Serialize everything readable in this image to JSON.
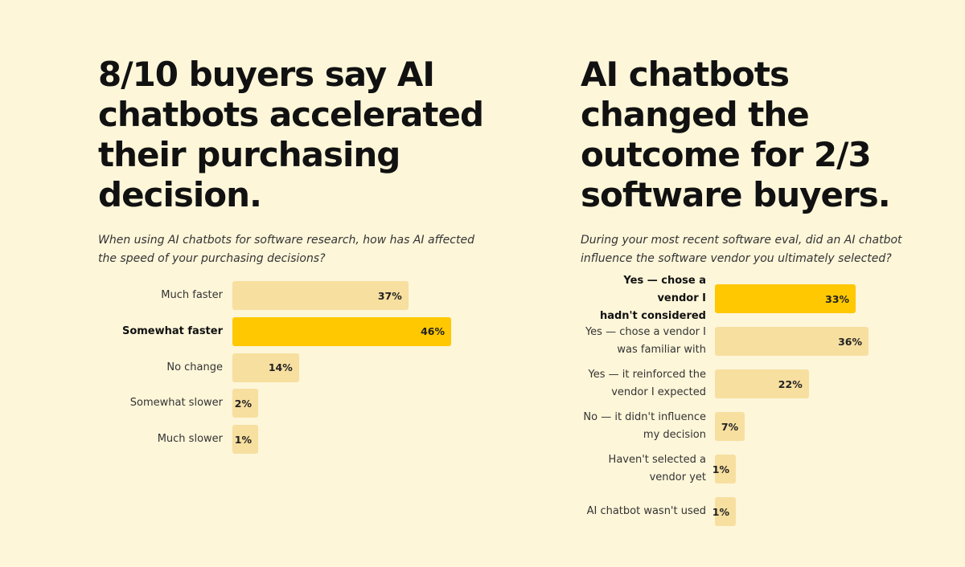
{
  "colors": {
    "background": "#fdf6d9",
    "bar": "#f7dfa0",
    "bar_highlight": "#ffc800"
  },
  "left": {
    "headline": "8/10 buyers say AI chatbots accelerated their purchasing decision.",
    "question": "When using AI chatbots for software research, how has AI affected the speed of your purchasing decisions?"
  },
  "right": {
    "headline": "AI chatbots changed the outcome for 2/3 software buyers.",
    "question": "During your most recent software eval, did an AI chatbot influence the software vendor you ultimately selected?"
  },
  "chart_data": [
    {
      "type": "bar",
      "orientation": "horizontal",
      "title": "8/10 buyers say AI chatbots accelerated their purchasing decision.",
      "categories": [
        "Much faster",
        "Somewhat faster",
        "No change",
        "Somewhat slower",
        "Much slower"
      ],
      "values": [
        37,
        46,
        14,
        2,
        1
      ],
      "value_labels": [
        "37%",
        "46%",
        "14%",
        "2%",
        "1%"
      ],
      "highlight_index": 1,
      "xlim": [
        0,
        46
      ],
      "grid": false
    },
    {
      "type": "bar",
      "orientation": "horizontal",
      "title": "AI chatbots changed the outcome for 2/3 software buyers.",
      "categories": [
        "Yes — chose a vendor I\nhadn't considered",
        "Yes — chose a vendor I\nwas familiar with",
        "Yes — it reinforced the\nvendor I expected",
        "No — it didn't influence\nmy decision",
        "Haven't selected a\nvendor yet",
        "AI chatbot wasn't used"
      ],
      "values": [
        33,
        36,
        22,
        7,
        1,
        1
      ],
      "value_labels": [
        "33%",
        "36%",
        "22%",
        "7%",
        "1%",
        "1%"
      ],
      "highlight_index": 0,
      "xlim": [
        0,
        36
      ],
      "grid": false
    }
  ]
}
